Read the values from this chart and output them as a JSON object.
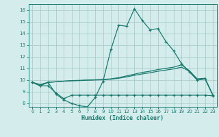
{
  "xlabel": "Humidex (Indice chaleur)",
  "background_color": "#d4edec",
  "grid_color": "#a8ccca",
  "line_color": "#1a7a6e",
  "xlim": [
    -0.5,
    23.5
  ],
  "ylim": [
    7.7,
    16.5
  ],
  "yticks": [
    8,
    9,
    10,
    11,
    12,
    13,
    14,
    15,
    16
  ],
  "xticks": [
    0,
    1,
    2,
    3,
    4,
    5,
    6,
    7,
    8,
    9,
    10,
    11,
    12,
    13,
    14,
    15,
    16,
    17,
    18,
    19,
    20,
    21,
    22,
    23
  ],
  "line1_x": [
    0,
    1,
    2,
    3,
    4,
    5,
    6,
    7,
    8,
    9,
    10,
    11,
    12,
    13,
    14,
    15,
    16,
    17,
    18,
    19,
    20,
    21,
    22,
    23
  ],
  "line1_y": [
    9.8,
    9.5,
    9.8,
    8.8,
    8.3,
    8.0,
    7.8,
    7.7,
    8.5,
    9.9,
    12.6,
    14.7,
    14.6,
    16.1,
    15.1,
    14.3,
    14.4,
    13.3,
    12.5,
    11.4,
    10.7,
    10.0,
    10.1,
    8.7
  ],
  "line2_x": [
    0,
    1,
    2,
    3,
    4,
    5,
    6,
    7,
    8,
    9,
    10,
    11,
    12,
    13,
    14,
    15,
    16,
    17,
    18,
    19,
    20,
    21,
    22,
    23
  ],
  "line2_y": [
    9.8,
    9.6,
    9.8,
    9.85,
    9.9,
    9.95,
    9.97,
    10.0,
    10.02,
    10.05,
    10.1,
    10.2,
    10.35,
    10.5,
    10.65,
    10.75,
    10.9,
    11.0,
    11.1,
    11.3,
    10.8,
    10.1,
    10.15,
    8.7
  ],
  "line3_x": [
    0,
    1,
    2,
    3,
    4,
    5,
    6,
    7,
    8,
    9,
    10,
    11,
    12,
    13,
    14,
    15,
    16,
    17,
    18,
    19,
    20,
    21,
    22,
    23
  ],
  "line3_y": [
    9.8,
    9.6,
    9.8,
    9.85,
    9.9,
    9.93,
    9.95,
    9.98,
    10.0,
    10.02,
    10.07,
    10.15,
    10.27,
    10.4,
    10.52,
    10.62,
    10.75,
    10.85,
    10.95,
    11.1,
    10.75,
    10.0,
    10.1,
    8.7
  ],
  "line4_x": [
    0,
    1,
    2,
    3,
    4,
    5,
    6,
    7,
    8,
    9,
    10,
    11,
    12,
    13,
    14,
    15,
    16,
    17,
    18,
    19,
    20,
    21,
    22,
    23
  ],
  "line4_y": [
    9.8,
    9.5,
    9.5,
    8.9,
    8.4,
    8.7,
    8.7,
    8.7,
    8.7,
    8.7,
    8.7,
    8.7,
    8.7,
    8.7,
    8.7,
    8.7,
    8.7,
    8.7,
    8.7,
    8.7,
    8.7,
    8.7,
    8.7,
    8.65
  ]
}
